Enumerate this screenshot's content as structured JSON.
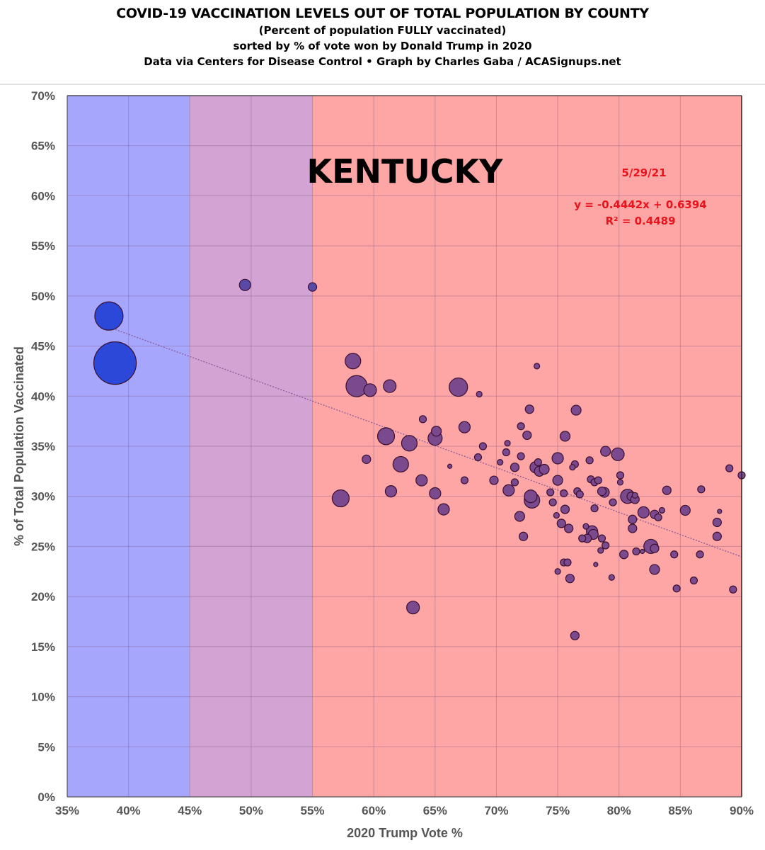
{
  "header": {
    "title": "COVID-19 VACCINATION LEVELS OUT OF TOTAL POPULATION BY COUNTY",
    "subtitle1": "(Percent of population FULLY vaccinated)",
    "subtitle2": "sorted by % of vote won by Donald Trump in 2020",
    "credit": "Data via Centers for Disease Control • Graph by Charles Gaba / ACASignups.net"
  },
  "colors": {
    "blue_zone": "#a6a6fc",
    "purple_zone": "#d3a3d3",
    "red_zone": "#fea5a5",
    "blue_point": "#2b48d8",
    "purple_point": "#7b4a8e",
    "annotation": "#e8141c"
  },
  "chart_data": {
    "type": "scatter",
    "title": "KENTUCKY",
    "xlabel": "2020 Trump Vote %",
    "ylabel": "% of Total Population Vaccinated",
    "xlim": [
      35,
      90
    ],
    "ylim": [
      0,
      70
    ],
    "xticks": [
      "35%",
      "40%",
      "45%",
      "50%",
      "55%",
      "60%",
      "65%",
      "70%",
      "75%",
      "80%",
      "85%",
      "90%"
    ],
    "yticks": [
      "0%",
      "5%",
      "10%",
      "15%",
      "20%",
      "25%",
      "30%",
      "35%",
      "40%",
      "45%",
      "50%",
      "55%",
      "60%",
      "65%",
      "70%"
    ],
    "grid": true,
    "zones": [
      {
        "name": "blue",
        "from": 35,
        "to": 45
      },
      {
        "name": "purple",
        "from": 45,
        "to": 55
      },
      {
        "name": "red",
        "from": 55,
        "to": 90
      }
    ],
    "annotations": {
      "date": "5/29/21",
      "equation": "y = -0.4442x + 0.6394",
      "r_squared": "R² = 0.4489"
    },
    "trendline": {
      "slope": -0.4442,
      "intercept": 0.6394,
      "x_from": 38.5,
      "x_to": 90
    },
    "size_note": "relative county population (bubble size)",
    "points": [
      {
        "x": 38.4,
        "y": 48.0,
        "s": 20
      },
      {
        "x": 38.9,
        "y": 43.3,
        "s": 30
      },
      {
        "x": 49.5,
        "y": 51.1,
        "s": 8
      },
      {
        "x": 55.0,
        "y": 50.9,
        "s": 6
      },
      {
        "x": 58.3,
        "y": 43.5,
        "s": 11
      },
      {
        "x": 58.6,
        "y": 41.0,
        "s": 15
      },
      {
        "x": 59.7,
        "y": 40.6,
        "s": 9
      },
      {
        "x": 61.3,
        "y": 41.0,
        "s": 9
      },
      {
        "x": 66.9,
        "y": 40.9,
        "s": 13
      },
      {
        "x": 68.6,
        "y": 40.2,
        "s": 4
      },
      {
        "x": 64.0,
        "y": 37.7,
        "s": 5
      },
      {
        "x": 65.1,
        "y": 36.5,
        "s": 7
      },
      {
        "x": 65.0,
        "y": 35.8,
        "s": 10
      },
      {
        "x": 67.4,
        "y": 36.9,
        "s": 8
      },
      {
        "x": 61.0,
        "y": 36.0,
        "s": 12
      },
      {
        "x": 62.9,
        "y": 35.3,
        "s": 11
      },
      {
        "x": 62.2,
        "y": 33.2,
        "s": 11
      },
      {
        "x": 59.4,
        "y": 33.7,
        "s": 6
      },
      {
        "x": 61.4,
        "y": 30.5,
        "s": 8
      },
      {
        "x": 63.9,
        "y": 31.6,
        "s": 8
      },
      {
        "x": 65.0,
        "y": 30.3,
        "s": 8
      },
      {
        "x": 57.3,
        "y": 29.8,
        "s": 12
      },
      {
        "x": 65.7,
        "y": 28.7,
        "s": 8
      },
      {
        "x": 63.2,
        "y": 18.9,
        "s": 9
      },
      {
        "x": 66.2,
        "y": 33.0,
        "s": 3
      },
      {
        "x": 67.4,
        "y": 31.6,
        "s": 5
      },
      {
        "x": 68.5,
        "y": 33.9,
        "s": 5
      },
      {
        "x": 68.9,
        "y": 35.0,
        "s": 5
      },
      {
        "x": 69.8,
        "y": 31.6,
        "s": 6
      },
      {
        "x": 70.3,
        "y": 33.4,
        "s": 4
      },
      {
        "x": 70.8,
        "y": 34.4,
        "s": 5
      },
      {
        "x": 70.9,
        "y": 35.3,
        "s": 4
      },
      {
        "x": 71.0,
        "y": 30.6,
        "s": 8
      },
      {
        "x": 71.5,
        "y": 32.9,
        "s": 6
      },
      {
        "x": 71.5,
        "y": 31.4,
        "s": 5
      },
      {
        "x": 72.0,
        "y": 37.0,
        "s": 5
      },
      {
        "x": 72.0,
        "y": 34.0,
        "s": 5
      },
      {
        "x": 71.9,
        "y": 28.0,
        "s": 7
      },
      {
        "x": 72.2,
        "y": 26.0,
        "s": 6
      },
      {
        "x": 72.5,
        "y": 36.1,
        "s": 6
      },
      {
        "x": 72.7,
        "y": 38.7,
        "s": 6
      },
      {
        "x": 72.8,
        "y": 30.0,
        "s": 9
      },
      {
        "x": 72.9,
        "y": 29.6,
        "s": 11
      },
      {
        "x": 73.2,
        "y": 32.9,
        "s": 8
      },
      {
        "x": 73.3,
        "y": 43.0,
        "s": 4
      },
      {
        "x": 73.4,
        "y": 33.4,
        "s": 5
      },
      {
        "x": 73.5,
        "y": 32.5,
        "s": 7
      },
      {
        "x": 73.9,
        "y": 32.7,
        "s": 7
      },
      {
        "x": 74.4,
        "y": 30.4,
        "s": 5
      },
      {
        "x": 74.6,
        "y": 29.4,
        "s": 5
      },
      {
        "x": 74.9,
        "y": 28.1,
        "s": 4
      },
      {
        "x": 75.0,
        "y": 33.8,
        "s": 8
      },
      {
        "x": 75.0,
        "y": 31.6,
        "s": 7
      },
      {
        "x": 75.3,
        "y": 27.3,
        "s": 6
      },
      {
        "x": 75.5,
        "y": 30.3,
        "s": 5
      },
      {
        "x": 75.6,
        "y": 28.7,
        "s": 6
      },
      {
        "x": 75.6,
        "y": 36.0,
        "s": 7
      },
      {
        "x": 75.0,
        "y": 22.5,
        "s": 4
      },
      {
        "x": 75.5,
        "y": 23.4,
        "s": 5
      },
      {
        "x": 75.8,
        "y": 23.4,
        "s": 5
      },
      {
        "x": 75.9,
        "y": 26.8,
        "s": 6
      },
      {
        "x": 76.0,
        "y": 21.8,
        "s": 6
      },
      {
        "x": 76.2,
        "y": 32.9,
        "s": 4
      },
      {
        "x": 76.4,
        "y": 33.2,
        "s": 5
      },
      {
        "x": 76.5,
        "y": 38.6,
        "s": 7
      },
      {
        "x": 76.6,
        "y": 30.5,
        "s": 5
      },
      {
        "x": 76.8,
        "y": 30.2,
        "s": 5
      },
      {
        "x": 76.4,
        "y": 16.1,
        "s": 6
      },
      {
        "x": 77.0,
        "y": 25.8,
        "s": 5
      },
      {
        "x": 77.3,
        "y": 27.0,
        "s": 4
      },
      {
        "x": 77.4,
        "y": 25.8,
        "s": 6
      },
      {
        "x": 77.6,
        "y": 33.6,
        "s": 5
      },
      {
        "x": 77.8,
        "y": 26.5,
        "s": 8
      },
      {
        "x": 77.9,
        "y": 26.2,
        "s": 7
      },
      {
        "x": 77.7,
        "y": 31.7,
        "s": 5
      },
      {
        "x": 78.0,
        "y": 31.4,
        "s": 5
      },
      {
        "x": 78.0,
        "y": 28.8,
        "s": 5
      },
      {
        "x": 78.1,
        "y": 23.2,
        "s": 3
      },
      {
        "x": 78.3,
        "y": 31.6,
        "s": 5
      },
      {
        "x": 78.6,
        "y": 30.5,
        "s": 6
      },
      {
        "x": 78.8,
        "y": 30.4,
        "s": 7
      },
      {
        "x": 78.5,
        "y": 24.6,
        "s": 4
      },
      {
        "x": 78.6,
        "y": 25.8,
        "s": 5
      },
      {
        "x": 78.9,
        "y": 25.1,
        "s": 5
      },
      {
        "x": 78.9,
        "y": 34.5,
        "s": 7
      },
      {
        "x": 79.5,
        "y": 29.4,
        "s": 5
      },
      {
        "x": 79.4,
        "y": 21.9,
        "s": 4
      },
      {
        "x": 79.9,
        "y": 34.2,
        "s": 9
      },
      {
        "x": 80.1,
        "y": 32.1,
        "s": 5
      },
      {
        "x": 80.1,
        "y": 31.4,
        "s": 4
      },
      {
        "x": 80.4,
        "y": 24.2,
        "s": 6
      },
      {
        "x": 80.7,
        "y": 30.0,
        "s": 10
      },
      {
        "x": 81.0,
        "y": 30.0,
        "s": 6
      },
      {
        "x": 81.1,
        "y": 27.7,
        "s": 6
      },
      {
        "x": 81.1,
        "y": 26.8,
        "s": 6
      },
      {
        "x": 81.3,
        "y": 29.7,
        "s": 6
      },
      {
        "x": 81.3,
        "y": 30.1,
        "s": 4
      },
      {
        "x": 81.4,
        "y": 24.5,
        "s": 5
      },
      {
        "x": 81.9,
        "y": 24.5,
        "s": 3
      },
      {
        "x": 82.0,
        "y": 28.4,
        "s": 8
      },
      {
        "x": 82.6,
        "y": 25.0,
        "s": 10
      },
      {
        "x": 82.9,
        "y": 24.8,
        "s": 6
      },
      {
        "x": 82.9,
        "y": 28.2,
        "s": 6
      },
      {
        "x": 83.2,
        "y": 27.9,
        "s": 5
      },
      {
        "x": 83.5,
        "y": 28.6,
        "s": 4
      },
      {
        "x": 82.9,
        "y": 22.7,
        "s": 7
      },
      {
        "x": 83.9,
        "y": 30.6,
        "s": 6
      },
      {
        "x": 84.5,
        "y": 24.2,
        "s": 5
      },
      {
        "x": 84.7,
        "y": 20.8,
        "s": 5
      },
      {
        "x": 85.4,
        "y": 28.6,
        "s": 7
      },
      {
        "x": 86.1,
        "y": 21.6,
        "s": 5
      },
      {
        "x": 86.7,
        "y": 30.7,
        "s": 5
      },
      {
        "x": 86.6,
        "y": 24.2,
        "s": 5
      },
      {
        "x": 88.0,
        "y": 27.4,
        "s": 6
      },
      {
        "x": 88.0,
        "y": 26.0,
        "s": 6
      },
      {
        "x": 88.2,
        "y": 28.5,
        "s": 3
      },
      {
        "x": 89.0,
        "y": 32.8,
        "s": 5
      },
      {
        "x": 89.3,
        "y": 20.7,
        "s": 5
      },
      {
        "x": 90.0,
        "y": 32.1,
        "s": 5
      }
    ]
  }
}
